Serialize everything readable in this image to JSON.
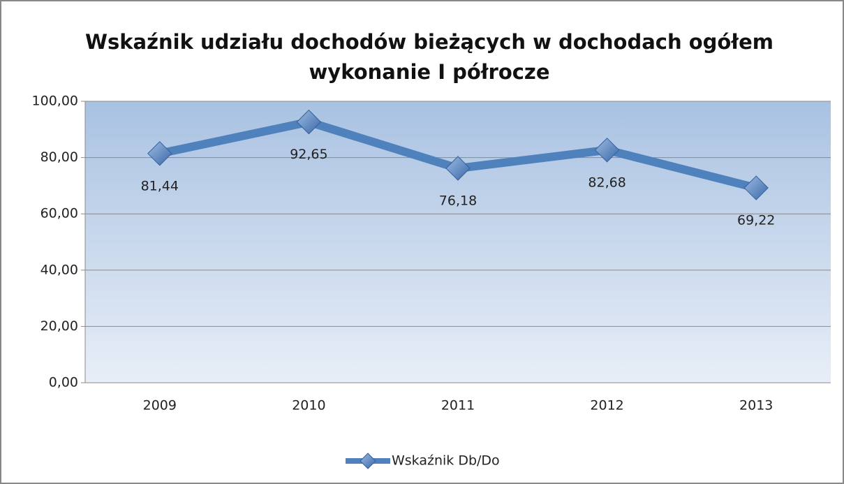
{
  "chart_data": {
    "type": "line",
    "title": [
      "Wskaźnik udziału dochodów bieżących w dochodach ogółem",
      "wykonanie I półrocze"
    ],
    "categories": [
      "2009",
      "2010",
      "2011",
      "2012",
      "2013"
    ],
    "series": [
      {
        "name": "Wskaźnik Db/Do",
        "color": "#4f81bd",
        "values": [
          81.44,
          92.65,
          76.18,
          82.68,
          69.22
        ],
        "value_labels": [
          "81,44",
          "92,65",
          "76,18",
          "82,68",
          "69,22"
        ]
      }
    ],
    "ylim": [
      0,
      100
    ],
    "yticks": [
      {
        "value": 0,
        "label": "0,00"
      },
      {
        "value": 20,
        "label": "20,00"
      },
      {
        "value": 40,
        "label": "40,00"
      },
      {
        "value": 60,
        "label": "60,00"
      },
      {
        "value": 80,
        "label": "80,00"
      },
      {
        "value": 100,
        "label": "100,00"
      }
    ],
    "grid": true,
    "legend": "bottom"
  }
}
